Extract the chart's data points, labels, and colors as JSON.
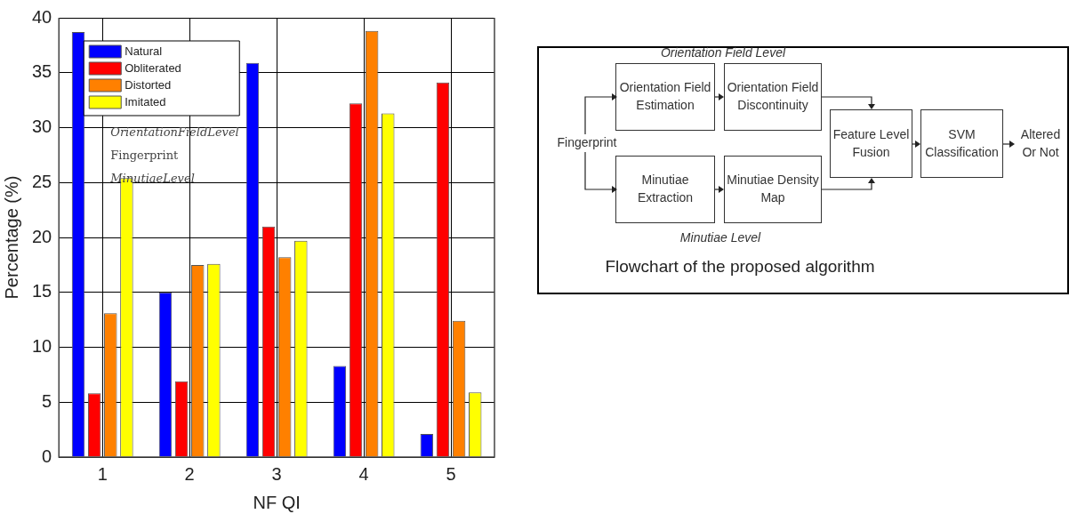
{
  "chart_data": [
    {
      "type": "bar",
      "xlabel": "NF QI",
      "ylabel": "Percentage (%)",
      "categories": [
        "1",
        "2",
        "3",
        "4",
        "5"
      ],
      "series": [
        {
          "name": "Natural",
          "color": "#0000ff",
          "values": [
            38.7,
            15.0,
            35.9,
            8.3,
            2.1
          ]
        },
        {
          "name": "Obliterated",
          "color": "#ff0000",
          "values": [
            5.8,
            6.9,
            21.0,
            32.2,
            34.1
          ]
        },
        {
          "name": "Distorted",
          "color": "#ff8000",
          "values": [
            13.1,
            17.5,
            18.2,
            38.8,
            12.4
          ]
        },
        {
          "name": "Imitated",
          "color": "#ffff00",
          "values": [
            25.4,
            17.6,
            19.7,
            31.3,
            5.9
          ]
        }
      ],
      "ylim": [
        0,
        40
      ],
      "yticks": [
        0,
        5,
        10,
        15,
        20,
        25,
        30,
        35,
        40
      ],
      "grid": true,
      "legend": "top left",
      "annotations": [
        "OrientationFieldLevel",
        "Fingerprint",
        "MinutiaeLevel"
      ]
    },
    {
      "type": "other",
      "title": "Flowchart of the proposed algorithm",
      "annotations": [
        "Orientation Field Level",
        "Orientation Field Estimation",
        "Orientation Field Discontinuity",
        "Fingerprint",
        "Minutiae Extraction",
        "Minutiae Density Map",
        "Feature Level Fusion",
        "SVM Classification",
        "Altered Or Not",
        "Minutiae Level"
      ]
    }
  ]
}
